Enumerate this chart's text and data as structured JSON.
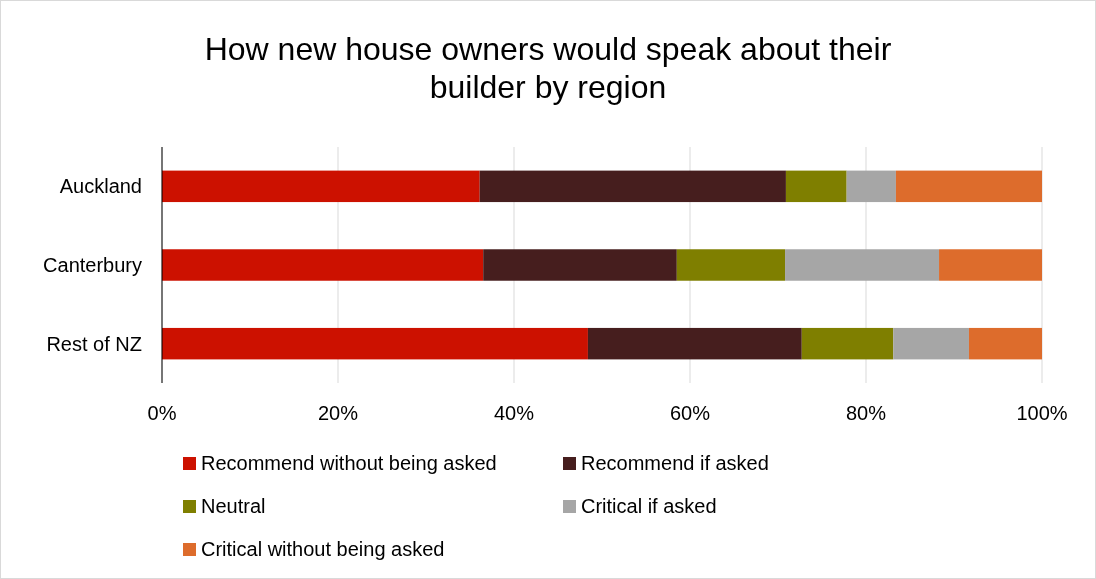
{
  "chart_data": {
    "type": "bar",
    "orientation": "horizontal",
    "stacked": true,
    "title": "How new house owners would speak about their builder by region",
    "categories": [
      "Auckland",
      "Canterbury",
      "Rest of NZ"
    ],
    "series": [
      {
        "name": "Recommend without being asked",
        "color": "#cc1100",
        "values": [
          36.1,
          36.5,
          48.4
        ]
      },
      {
        "name": "Recommend if asked",
        "color": "#461e1e",
        "values": [
          34.8,
          22.0,
          24.3
        ]
      },
      {
        "name": "Neutral",
        "color": "#7f7f00",
        "values": [
          6.9,
          12.3,
          10.4
        ]
      },
      {
        "name": "Critical if asked",
        "color": "#a6a6a6",
        "values": [
          5.6,
          17.5,
          8.6
        ]
      },
      {
        "name": "Critical without being asked",
        "color": "#dd6c2c",
        "values": [
          16.6,
          11.7,
          8.3
        ]
      }
    ],
    "xlim": [
      0,
      100
    ],
    "xticks": [
      {
        "value": 0,
        "label": "0%"
      },
      {
        "value": 20,
        "label": "20%"
      },
      {
        "value": 40,
        "label": "40%"
      },
      {
        "value": 60,
        "label": "60%"
      },
      {
        "value": 80,
        "label": "80%"
      },
      {
        "value": 100,
        "label": "100%"
      }
    ],
    "grid": "x",
    "legend": "bottom"
  }
}
